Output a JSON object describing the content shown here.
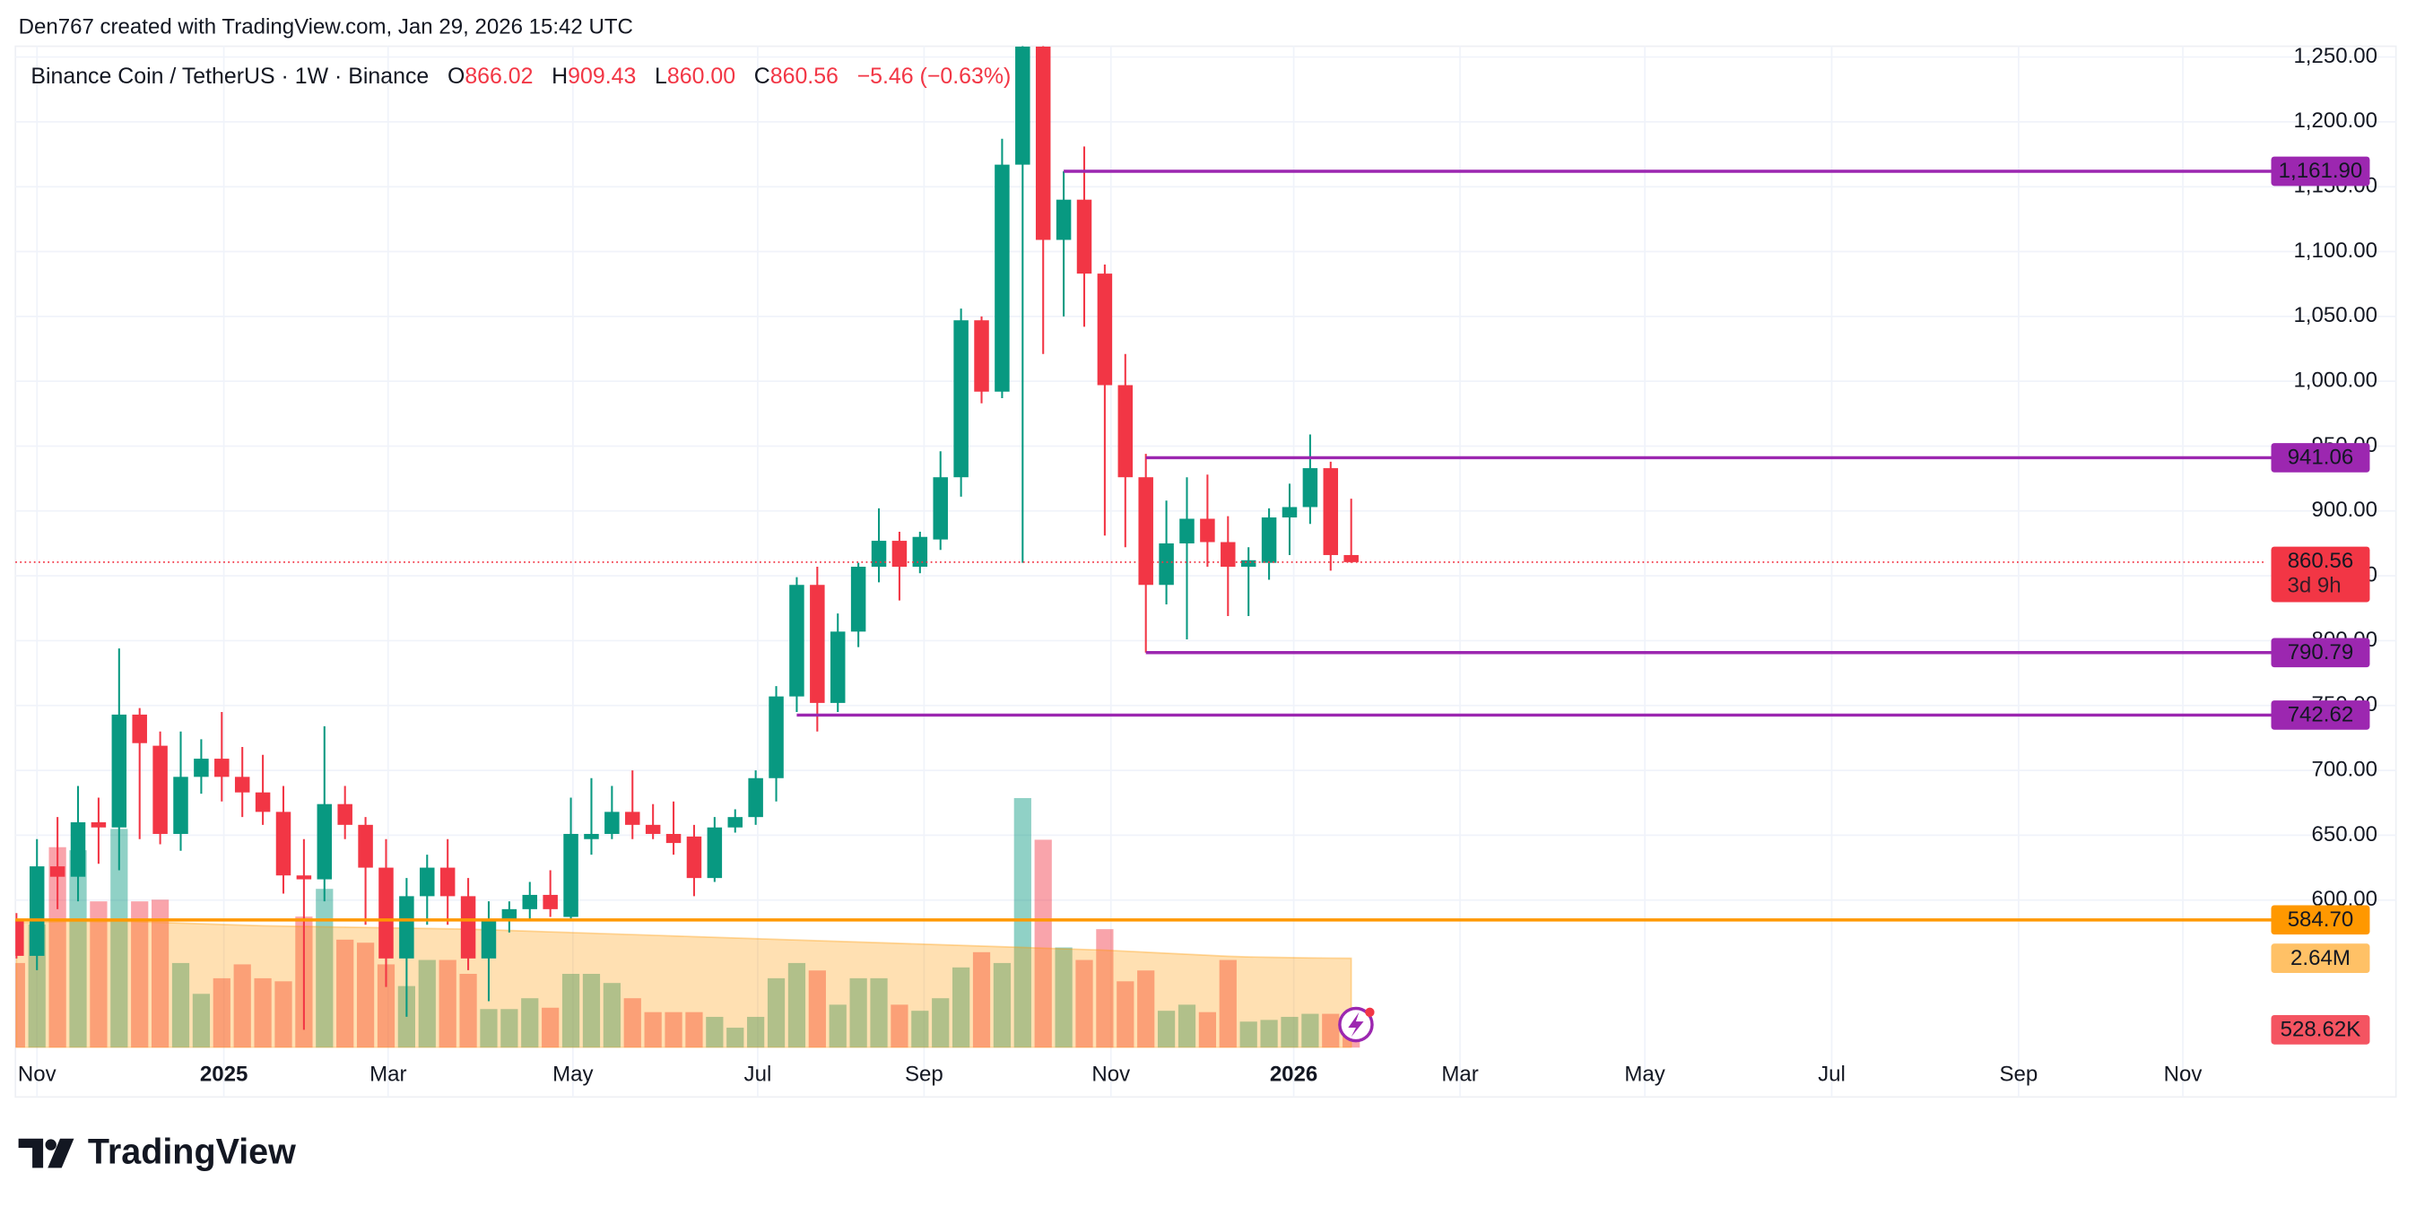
{
  "header": {
    "attribution": "Den767 created with TradingView.com, Jan 29, 2026 15:42 UTC"
  },
  "chart_data": {
    "type": "candlestick",
    "title": "Binance Coin / TetherUS · 1W · Binance",
    "legend": {
      "o": "O",
      "h": "H",
      "l": "L",
      "c": "C",
      "low_label": "860.00",
      "change": "−5.46 (−0.63%)"
    },
    "x": [
      -1,
      0,
      1,
      2,
      3,
      4,
      5,
      6,
      7,
      8,
      9,
      10,
      11,
      12,
      13,
      14,
      15,
      16,
      17,
      18,
      19,
      20,
      21,
      22,
      23,
      24,
      25,
      26,
      27,
      28,
      29,
      30,
      31,
      32,
      33,
      34,
      35,
      36,
      37,
      38,
      39,
      40,
      41,
      42,
      43,
      44,
      45,
      46,
      47,
      48,
      49,
      50,
      51,
      52,
      53,
      54,
      55,
      56,
      57,
      58,
      59,
      60,
      61,
      62,
      63,
      64
    ],
    "open": [
      585,
      557,
      626,
      618,
      660,
      656,
      743,
      719,
      651,
      695,
      709,
      695,
      683,
      668,
      619,
      616,
      674,
      658,
      625,
      555,
      603,
      625,
      603,
      555,
      584,
      593,
      604,
      587,
      647,
      651,
      668,
      658,
      651,
      649,
      617,
      656,
      664,
      694,
      757,
      843,
      752,
      807,
      857,
      877,
      857,
      878,
      926,
      1047,
      992,
      1167,
      1258,
      1109,
      1140,
      1083,
      997,
      926,
      843,
      875,
      894,
      876,
      857,
      860,
      895,
      903,
      933,
      866.02
    ],
    "high": [
      590,
      647,
      664,
      688,
      679,
      794,
      748,
      730,
      730,
      724,
      745,
      718,
      712,
      688,
      647,
      734,
      688,
      664,
      647,
      617,
      635,
      647,
      617,
      599,
      599,
      614,
      623,
      679,
      694,
      688,
      700,
      674,
      676,
      658,
      664,
      670,
      700,
      765,
      849,
      857,
      821,
      860,
      902,
      884,
      884,
      946,
      1056,
      1050,
      1187,
      1265,
      1261,
      1161.9,
      1181,
      1090,
      1021,
      944,
      908,
      926,
      928,
      896,
      872,
      902,
      921,
      959,
      938,
      909.43
    ],
    "low": [
      555,
      546,
      593,
      599,
      628,
      623,
      647,
      643,
      638,
      682,
      676,
      664,
      658,
      605,
      500,
      599,
      647,
      581,
      533,
      510,
      581,
      581,
      546,
      522,
      575,
      584,
      587,
      584,
      635,
      647,
      647,
      647,
      635,
      603,
      614,
      652,
      658,
      676,
      745,
      730,
      745,
      795,
      845,
      831,
      852,
      870,
      911,
      983,
      987,
      860,
      1021,
      1050,
      1042,
      881,
      872,
      790.79,
      828,
      801,
      857,
      819,
      819,
      847,
      866,
      890,
      854,
      860
    ],
    "close": [
      557,
      626,
      618,
      660,
      656,
      743,
      721,
      651,
      695,
      709,
      695,
      683,
      668,
      619,
      616,
      674,
      658,
      625,
      555,
      603,
      625,
      603,
      555,
      584,
      593,
      604,
      593,
      651,
      651,
      668,
      658,
      651,
      644,
      617,
      656,
      664,
      694,
      757,
      843,
      752,
      807,
      857,
      877,
      857,
      880,
      926,
      1047,
      992,
      1167,
      1258,
      1109,
      1140,
      1083,
      997,
      926,
      843,
      875,
      894,
      876,
      857,
      862,
      895,
      903,
      933,
      866.02,
      860.56
    ],
    "volume": [
      2500000,
      3640000,
      5920000,
      5830000,
      4320000,
      6460000,
      4320000,
      4370000,
      2500000,
      1590000,
      2050000,
      2460000,
      2050000,
      1960000,
      3870000,
      4690000,
      3190000,
      3100000,
      2460000,
      1820000,
      2590000,
      2590000,
      2180000,
      1140000,
      1140000,
      1460000,
      1180000,
      2180000,
      2180000,
      1910000,
      1460000,
      1050000,
      1050000,
      1050000,
      910000,
      590000,
      910000,
      2050000,
      2500000,
      2280000,
      1270000,
      2050000,
      2050000,
      1270000,
      1090000,
      1460000,
      2370000,
      2820000,
      2500000,
      7370000,
      6140000,
      2960000,
      2590000,
      3500000,
      1960000,
      2280000,
      1090000,
      1270000,
      1050000,
      2590000,
      770000,
      820000,
      910000,
      1000000,
      1000000,
      528620
    ],
    "volume_ma": [
      3700000,
      3700000,
      3720000,
      3740000,
      3720000,
      3740000,
      3720000,
      3700000,
      3680000,
      3660000,
      3640000,
      3620000,
      3600000,
      3590000,
      3580000,
      3570000,
      3560000,
      3550000,
      3540000,
      3530000,
      3520000,
      3510000,
      3500000,
      3480000,
      3460000,
      3440000,
      3420000,
      3400000,
      3380000,
      3360000,
      3340000,
      3320000,
      3300000,
      3280000,
      3260000,
      3240000,
      3220000,
      3200000,
      3180000,
      3160000,
      3140000,
      3120000,
      3100000,
      3080000,
      3060000,
      3040000,
      3020000,
      3000000,
      2980000,
      2960000,
      2940000,
      2920000,
      2900000,
      2880000,
      2850000,
      2820000,
      2790000,
      2760000,
      2730000,
      2700000,
      2680000,
      2670000,
      2660000,
      2650000,
      2645000,
      2640000
    ],
    "volume_ma_label": "2.64M",
    "volume_label": "528.62K",
    "countdown": "3d 9h",
    "up_color": "#089981",
    "down_color": "#f23645",
    "volume_ma_color": "#ff9800",
    "xlim": [
      -1.05,
      108.5
    ],
    "xticks": [
      {
        "value": 0,
        "label": "Nov"
      },
      {
        "value": 9.1,
        "label": "2025"
      },
      {
        "value": 17.1,
        "label": "Mar"
      },
      {
        "value": 26.1,
        "label": "May"
      },
      {
        "value": 35.1,
        "label": "Jul"
      },
      {
        "value": 43.2,
        "label": "Sep"
      },
      {
        "value": 52.3,
        "label": "Nov"
      },
      {
        "value": 61.2,
        "label": "2026"
      },
      {
        "value": 69.3,
        "label": "Mar"
      },
      {
        "value": 78.3,
        "label": "May"
      },
      {
        "value": 87.4,
        "label": "Jul"
      },
      {
        "value": 96.5,
        "label": "Sep"
      },
      {
        "value": 104.5,
        "label": "Nov"
      }
    ],
    "ylim": [
      486.2,
      1258.3
    ],
    "yticks": [
      {
        "value": 600,
        "label": "600.00"
      },
      {
        "value": 650,
        "label": "650.00"
      },
      {
        "value": 700,
        "label": "700.00"
      },
      {
        "value": 750,
        "label": "750.00"
      },
      {
        "value": 800,
        "label": "800.00"
      },
      {
        "value": 850,
        "label": "850.00"
      },
      {
        "value": 900,
        "label": "900.00"
      },
      {
        "value": 950,
        "label": "950.00"
      },
      {
        "value": 1000,
        "label": "1,000.00"
      },
      {
        "value": 1050,
        "label": "1,050.00"
      },
      {
        "value": 1100,
        "label": "1,100.00"
      },
      {
        "value": 1150,
        "label": "1,150.00"
      },
      {
        "value": 1200,
        "label": "1,200.00"
      },
      {
        "value": 1250,
        "label": "1,250.00"
      }
    ],
    "levels": [
      {
        "price": {
          "value": 1161.9,
          "label": "1,161.90"
        },
        "start": 50,
        "color": "#9c27b0"
      },
      {
        "price": 941.06,
        "start": 54,
        "color": "#9c27b0"
      },
      {
        "price": 790.79,
        "start": 54,
        "color": "#9c27b0"
      },
      {
        "price": 742.62,
        "start": 37,
        "color": "#9c27b0"
      },
      {
        "price": {
          "value": 584.7,
          "label": "584.70"
        },
        "start": -1.05,
        "color": "#ff9800"
      }
    ],
    "grid": true
  },
  "footer": {
    "brand": "TradingView"
  }
}
